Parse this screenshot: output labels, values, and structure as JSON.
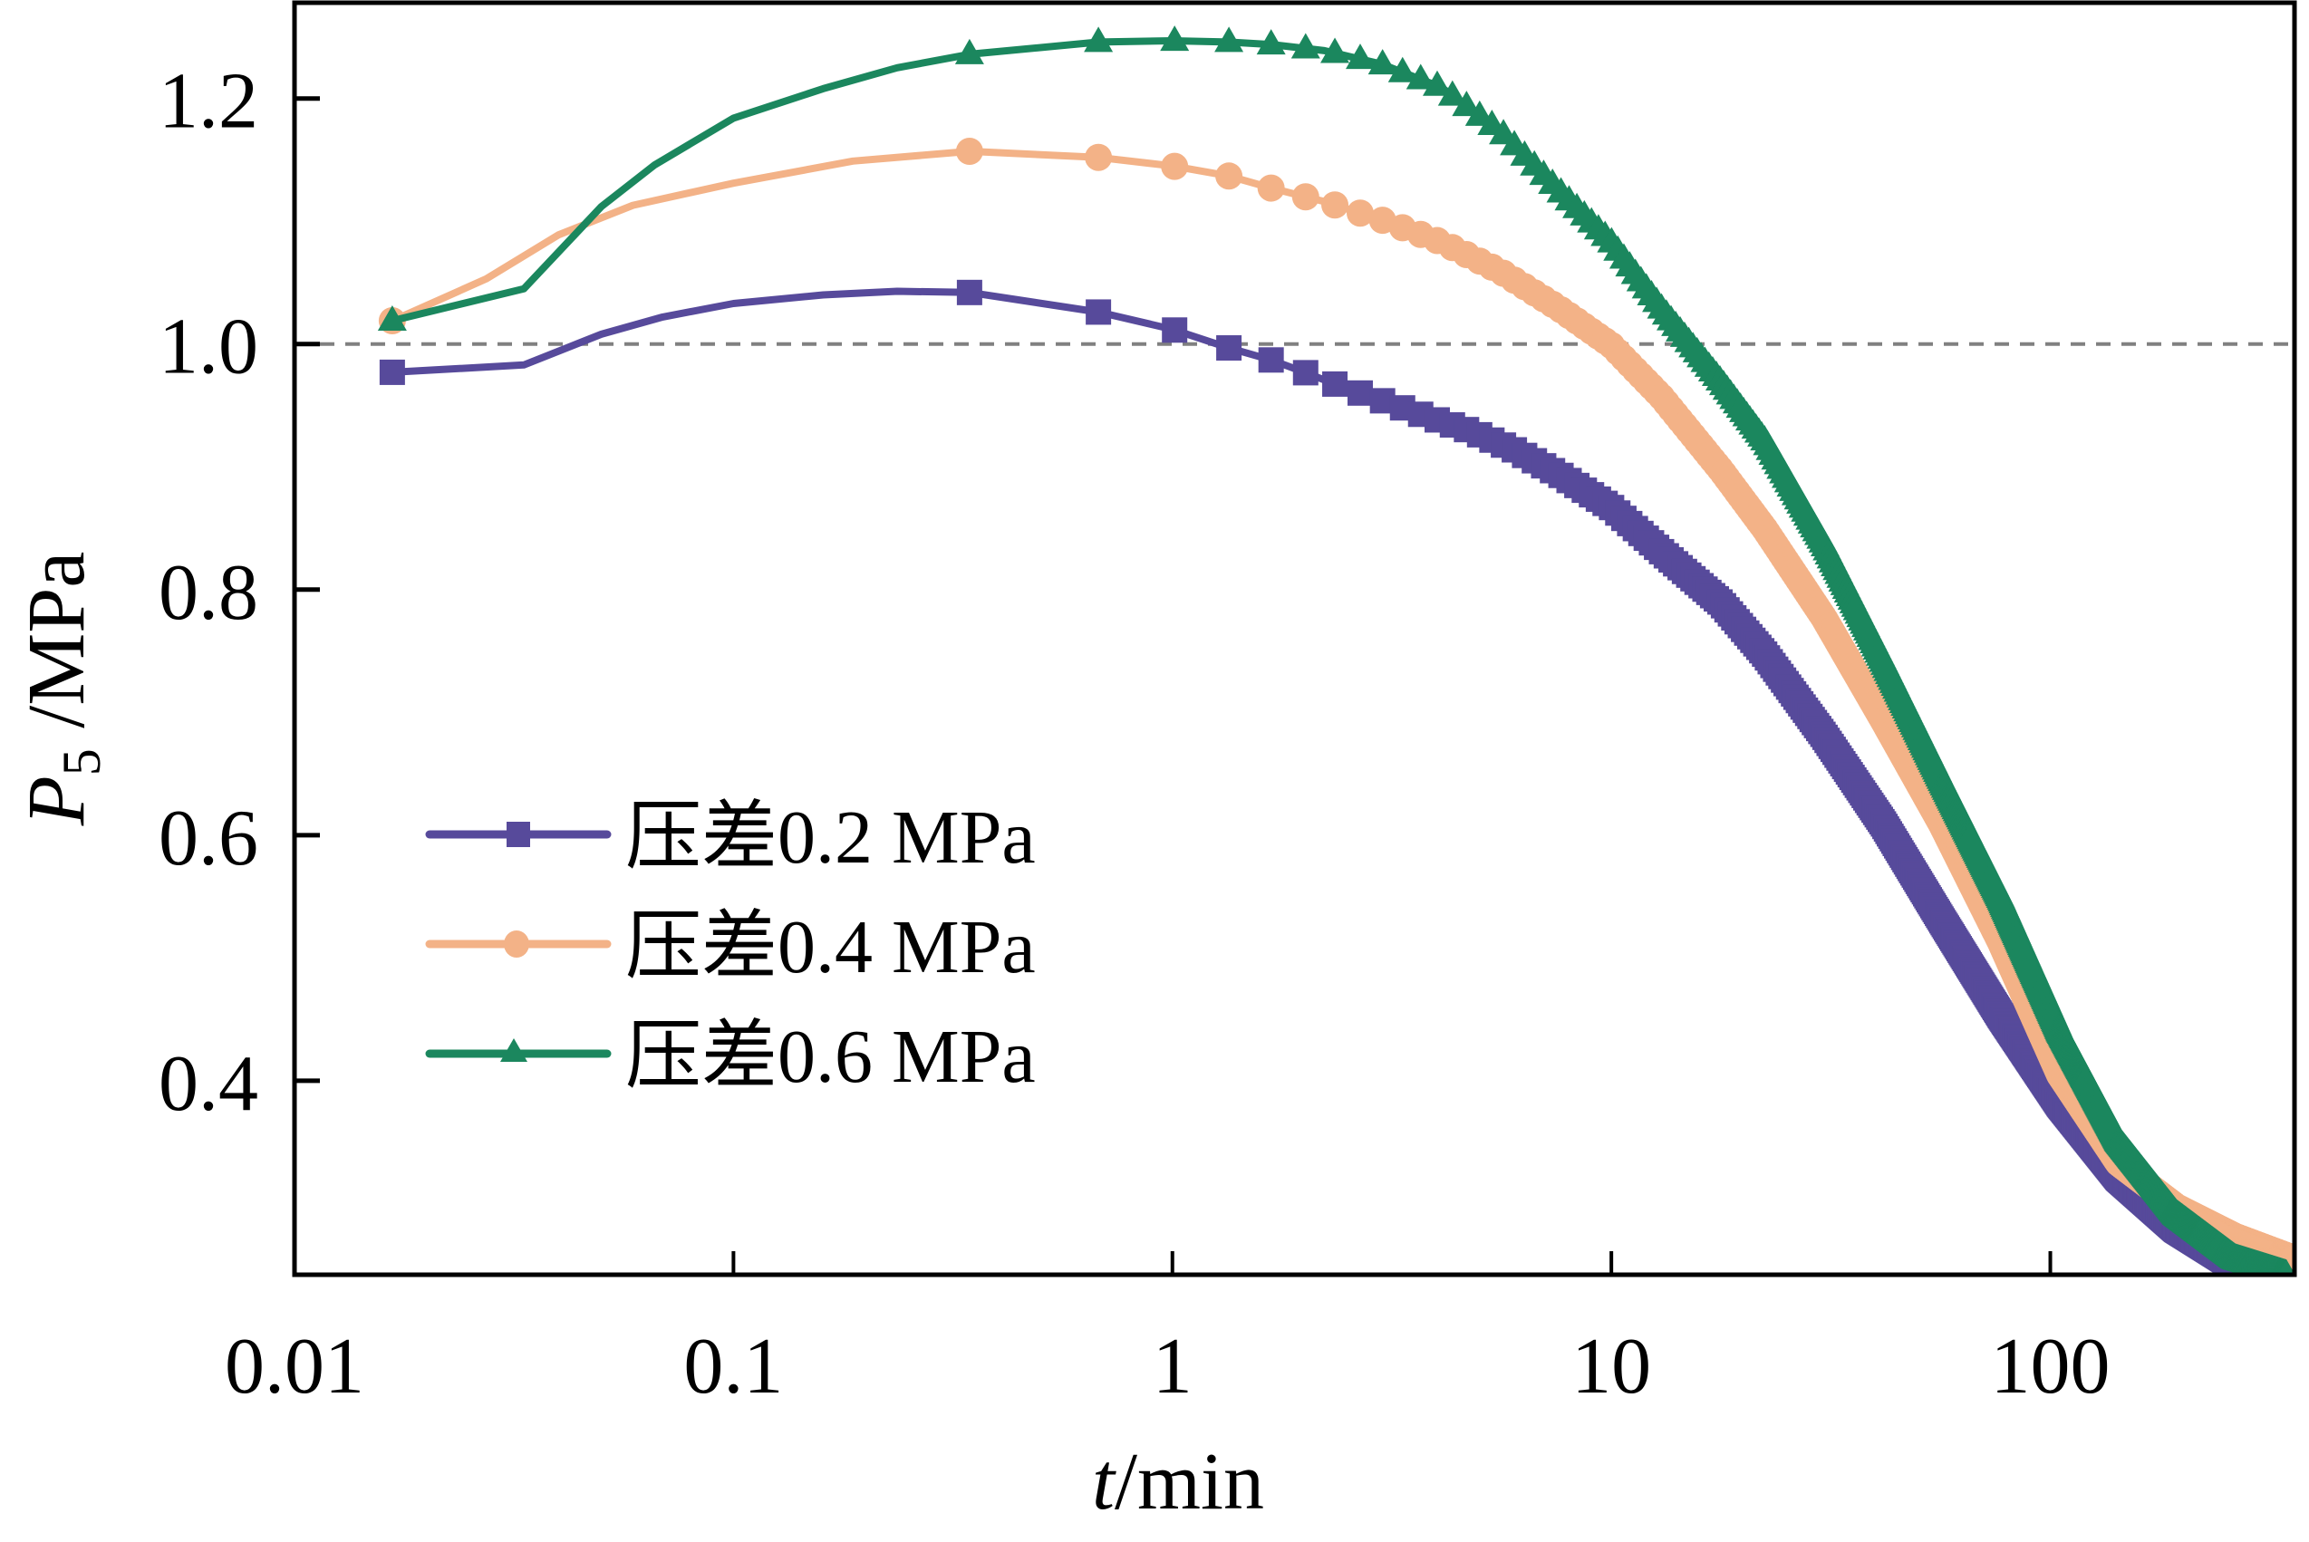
{
  "chart_data": {
    "type": "line",
    "title": "",
    "xlabel": "t/min",
    "xlabel_italic_part": "t",
    "xlabel_rest": "/min",
    "ylabel": "P5 /MPa",
    "ylabel_main": "P",
    "ylabel_sub": "5",
    "ylabel_rest": " /MPa",
    "xscale": "log",
    "xlim": [
      0.01,
      360
    ],
    "ylim": [
      0.242,
      1.278
    ],
    "x_ticks": [
      0.01,
      0.1,
      1,
      10,
      100
    ],
    "x_tick_labels": [
      "0.01",
      "0.1",
      "1",
      "10",
      "100"
    ],
    "y_ticks": [
      0.4,
      0.6,
      0.8,
      1.0,
      1.2
    ],
    "y_tick_labels": [
      "0.4",
      "0.6",
      "0.8",
      "1.0",
      "1.2"
    ],
    "reference_line": {
      "y": 1.0,
      "style": "dashed",
      "color": "#808080"
    },
    "grid": false,
    "legend_position": "center-left",
    "series": [
      {
        "name": "压差0.2 MPa",
        "color": "#574a9b",
        "marker": "square",
        "x": [
          0.0167,
          0.0333,
          0.05,
          0.069,
          0.1,
          0.16,
          0.236,
          0.345,
          0.68,
          1.0,
          1.34,
          1.68,
          2.0,
          2.4,
          3.0,
          3.8,
          4.8,
          6.0,
          7.6,
          10,
          13,
          17.8,
          22.4,
          30.5,
          41.7,
          56.5,
          77,
          105,
          143,
          194,
          264,
          345
        ],
        "y": [
          0.977,
          0.983,
          1.008,
          1.022,
          1.033,
          1.04,
          1.043,
          1.042,
          1.026,
          1.012,
          0.997,
          0.987,
          0.977,
          0.966,
          0.954,
          0.941,
          0.929,
          0.914,
          0.894,
          0.867,
          0.831,
          0.789,
          0.747,
          0.681,
          0.609,
          0.531,
          0.453,
          0.381,
          0.321,
          0.279,
          0.249,
          0.242
        ]
      },
      {
        "name": "压差0.4 MPa",
        "color": "#f3b287",
        "marker": "circle",
        "x": [
          0.0167,
          0.0273,
          0.04,
          0.059,
          0.1,
          0.187,
          0.345,
          0.68,
          1.0,
          1.34,
          1.68,
          2.22,
          3.0,
          4.1,
          5.6,
          7.6,
          10,
          13,
          17.8,
          22.4,
          30.5,
          41.7,
          56.5,
          77,
          105,
          143,
          194,
          264,
          360
        ],
        "y": [
          1.019,
          1.053,
          1.089,
          1.113,
          1.131,
          1.149,
          1.157,
          1.152,
          1.145,
          1.137,
          1.127,
          1.116,
          1.101,
          1.083,
          1.059,
          1.029,
          0.999,
          0.957,
          0.897,
          0.849,
          0.777,
          0.693,
          0.609,
          0.513,
          0.405,
          0.333,
          0.297,
          0.273,
          0.255
        ]
      },
      {
        "name": "压差0.6 MPa",
        "color": "#1b875e",
        "marker": "triangle",
        "x": [
          0.0167,
          0.0333,
          0.05,
          0.0662,
          0.1,
          0.16,
          0.236,
          0.345,
          0.68,
          1.0,
          1.34,
          1.68,
          2.22,
          3.0,
          4.1,
          5.6,
          7.6,
          10,
          13,
          17.8,
          22.4,
          30.5,
          41.7,
          56.5,
          77,
          105,
          143,
          194,
          264,
          345
        ],
        "y": [
          1.019,
          1.045,
          1.112,
          1.146,
          1.184,
          1.208,
          1.225,
          1.236,
          1.246,
          1.247,
          1.246,
          1.244,
          1.239,
          1.228,
          1.209,
          1.173,
          1.125,
          1.083,
          1.029,
          0.969,
          0.921,
          0.837,
          0.741,
          0.645,
          0.549,
          0.441,
          0.351,
          0.291,
          0.255,
          0.242
        ]
      }
    ]
  }
}
